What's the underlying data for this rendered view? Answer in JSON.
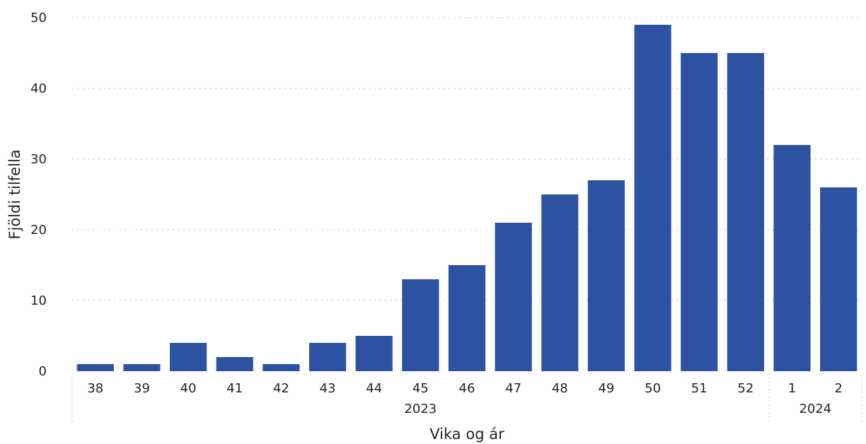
{
  "chart_data": {
    "type": "bar",
    "xlabel": "Vika og ár",
    "ylabel": "Fjöldi tilfella",
    "ylim": [
      0,
      50
    ],
    "yticks": [
      0,
      10,
      20,
      30,
      40,
      50
    ],
    "grid": true,
    "bar_color": "#2e52a2",
    "categories": [
      "38",
      "39",
      "40",
      "41",
      "42",
      "43",
      "44",
      "45",
      "46",
      "47",
      "48",
      "49",
      "50",
      "51",
      "52",
      "1",
      "2"
    ],
    "values": [
      1,
      1,
      4,
      2,
      1,
      4,
      5,
      13,
      15,
      21,
      25,
      27,
      49,
      45,
      45,
      32,
      26
    ],
    "groups": [
      {
        "label": "2023",
        "count": 15
      },
      {
        "label": "2024",
        "count": 2
      }
    ]
  }
}
